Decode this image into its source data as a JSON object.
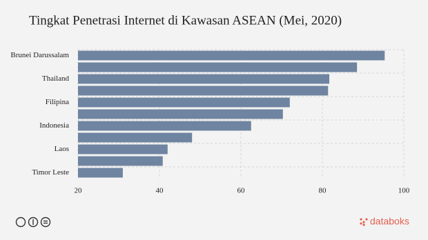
{
  "chart_data": {
    "type": "bar",
    "orientation": "horizontal",
    "title": "Tingkat Penetrasi Internet di Kawasan ASEAN (Mei, 2020)",
    "categories": [
      "Brunei Darussalam",
      null,
      "Thailand",
      null,
      "Filipina",
      null,
      "Indonesia",
      null,
      "Laos",
      null,
      "Timor Leste"
    ],
    "values": [
      95.3,
      88.5,
      81.7,
      81.4,
      72.0,
      70.3,
      62.5,
      48.0,
      42.0,
      40.8,
      31.0
    ],
    "color": "#6f84a0",
    "xlim": [
      20,
      100
    ],
    "xticks": [
      20,
      40,
      60,
      80,
      100
    ],
    "grid": true
  },
  "footer": {
    "brand": "databoks"
  }
}
